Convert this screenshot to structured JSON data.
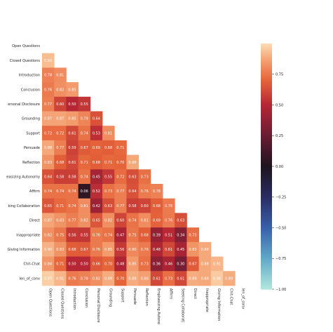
{
  "chart_data": {
    "type": "heatmap",
    "mask": "upper-triangle",
    "colormap": "icefire",
    "vmin": -1.0,
    "vmax": 1.0,
    "row_labels": [
      "Open Questions",
      "Closed Questions",
      "Introduction",
      "Conclusion",
      "ersonal Disclosure",
      "Grounding",
      "Support",
      "Persuade",
      "Reflection",
      "easizing Autonomy",
      "Affirm",
      "king Collaboration",
      "Direct",
      "Inappropriate",
      "Giving Information",
      "Chit-Chat",
      "len_of_conv"
    ],
    "col_labels": [
      "Open Questions",
      "Closed Questions",
      "Introduction",
      "Conclusion",
      "Personal Disclosure",
      "Grounding",
      "Support",
      "Persuade",
      "Reflection",
      "Emphasizing Autono",
      "Affirm",
      "Seeking Collaborati",
      "Direct",
      "Inappropriate",
      "Giving Information",
      "Chit-Chat",
      "len_of_conv"
    ],
    "values": [
      [],
      [
        0.93
      ],
      [
        0.78,
        0.81
      ],
      [
        0.76,
        0.82,
        0.85
      ],
      [
        0.77,
        0.6,
        0.5,
        0.55
      ],
      [
        0.87,
        0.87,
        0.85,
        0.79,
        0.64
      ],
      [
        0.72,
        0.72,
        0.61,
        0.74,
        0.53,
        0.81
      ],
      [
        0.88,
        0.77,
        0.59,
        0.67,
        0.69,
        0.68,
        0.71
      ],
      [
        0.83,
        0.68,
        0.61,
        0.71,
        0.68,
        0.71,
        0.7,
        0.88
      ],
      [
        0.64,
        0.58,
        0.58,
        0.74,
        0.45,
        0.55,
        0.72,
        0.63,
        0.73
      ],
      [
        0.74,
        0.74,
        0.74,
        0.06,
        0.52,
        0.73,
        0.77,
        0.64,
        0.76,
        0.78
      ],
      [
        0.65,
        0.71,
        0.74,
        0.81,
        0.42,
        0.63,
        0.77,
        0.58,
        0.6,
        0.68,
        0.76
      ],
      [
        0.87,
        0.83,
        0.77,
        0.82,
        0.65,
        0.82,
        0.6,
        0.74,
        0.81,
        0.69,
        0.76,
        0.63
      ],
      [
        0.82,
        0.75,
        0.56,
        0.55,
        0.76,
        0.74,
        0.47,
        0.75,
        0.68,
        0.39,
        0.51,
        0.34,
        0.73
      ],
      [
        0.9,
        0.83,
        0.68,
        0.67,
        0.76,
        0.85,
        0.56,
        0.8,
        0.76,
        0.48,
        0.61,
        0.45,
        0.83,
        0.88
      ],
      [
        0.84,
        0.71,
        0.5,
        0.5,
        0.66,
        0.7,
        0.48,
        0.85,
        0.73,
        0.36,
        0.46,
        0.3,
        0.67,
        0.88,
        0.91
      ],
      [
        0.97,
        0.91,
        0.76,
        0.78,
        0.82,
        0.89,
        0.7,
        0.89,
        0.86,
        0.61,
        0.73,
        0.61,
        0.89,
        0.88,
        0.96,
        0.89
      ]
    ],
    "colorbar": {
      "ticks": [
        0.75,
        0.5,
        0.25,
        0.0,
        -0.25,
        -0.5,
        -0.75,
        -1.0
      ],
      "tick_labels": [
        "0.75",
        "0.50",
        "0.25",
        "0.00",
        "−0.25",
        "−0.50",
        "−0.75",
        "−1.00"
      ]
    }
  }
}
